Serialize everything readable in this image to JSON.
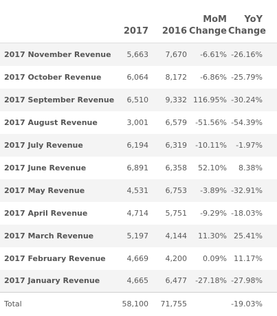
{
  "columns": {
    "y2017": "2017",
    "y2016": "2016",
    "mom_line1": "MoM",
    "mom_line2": "Change",
    "yoy_line1": "YoY",
    "yoy_line2": "Change"
  },
  "rows": [
    {
      "label": "2017 November Revenue",
      "y2017": "5,663",
      "y2016": "7,670",
      "mom": "-6.61%",
      "yoy": "-26.16%"
    },
    {
      "label": "2017 October Revenue",
      "y2017": "6,064",
      "y2016": "8,172",
      "mom": "-6.86%",
      "yoy": "-25.79%"
    },
    {
      "label": "2017 September Revenue",
      "y2017": "6,510",
      "y2016": "9,332",
      "mom": "116.95%",
      "yoy": "-30.24%"
    },
    {
      "label": "2017 August Revenue",
      "y2017": "3,001",
      "y2016": "6,579",
      "mom": "-51.56%",
      "yoy": "-54.39%"
    },
    {
      "label": "2017 July Revenue",
      "y2017": "6,194",
      "y2016": "6,319",
      "mom": "-10.11%",
      "yoy": "-1.97%"
    },
    {
      "label": "2017 June Revenue",
      "y2017": "6,891",
      "y2016": "6,358",
      "mom": "52.10%",
      "yoy": "8.38%"
    },
    {
      "label": "2017 May Revenue",
      "y2017": "4,531",
      "y2016": "6,753",
      "mom": "-3.89%",
      "yoy": "-32.91%"
    },
    {
      "label": "2017 April Revenue",
      "y2017": "4,714",
      "y2016": "5,751",
      "mom": "-9.29%",
      "yoy": "-18.03%"
    },
    {
      "label": "2017 March Revenue",
      "y2017": "5,197",
      "y2016": "4,144",
      "mom": "11.30%",
      "yoy": "25.41%"
    },
    {
      "label": "2017 February Revenue",
      "y2017": "4,669",
      "y2016": "4,200",
      "mom": "0.09%",
      "yoy": "11.17%"
    },
    {
      "label": "2017 January Revenue",
      "y2017": "4,665",
      "y2016": "6,477",
      "mom": "-27.18%",
      "yoy": "-27.98%"
    }
  ],
  "total": {
    "label": "Total",
    "y2017": "58,100",
    "y2016": "71,755",
    "mom": "",
    "yoy": "-19.03%"
  }
}
